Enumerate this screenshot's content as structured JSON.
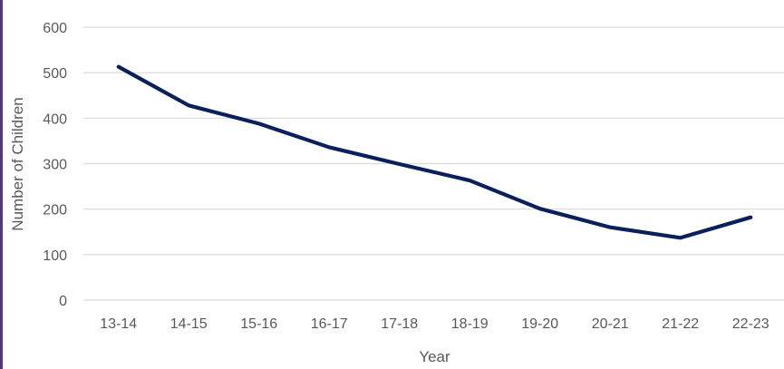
{
  "chart_data": {
    "type": "line",
    "title": "",
    "xlabel": "Year",
    "ylabel": "Number of Children",
    "categories": [
      "13-14",
      "14-15",
      "15-16",
      "16-17",
      "17-18",
      "18-19",
      "19-20",
      "20-21",
      "21-22",
      "22-23"
    ],
    "series": [
      {
        "values": [
          513,
          428,
          388,
          336,
          299,
          263,
          201,
          160,
          137,
          182
        ],
        "color": "#0b1f5c"
      }
    ],
    "ylim": [
      0,
      600
    ],
    "yticks": [
      0,
      100,
      200,
      300,
      400,
      500,
      600
    ],
    "grid": true,
    "legend": "none"
  }
}
